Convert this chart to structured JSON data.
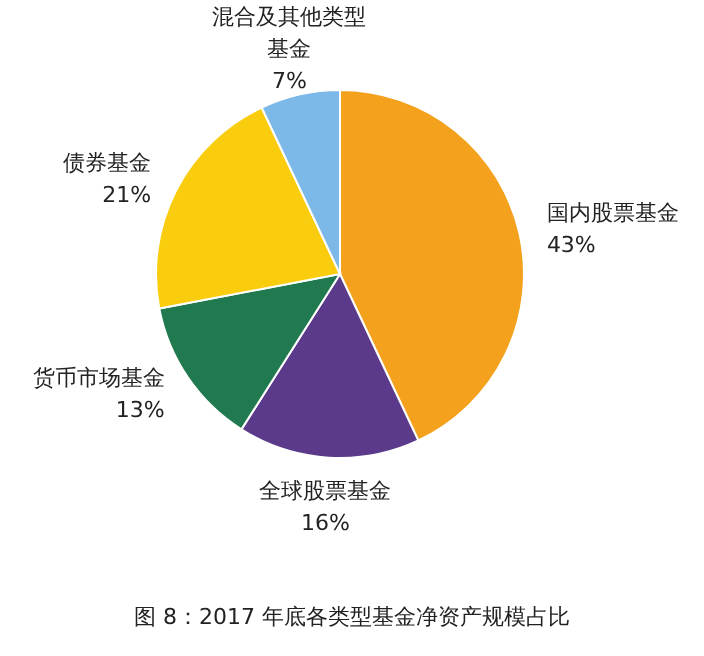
{
  "chart_data": {
    "type": "pie",
    "title": "图 8：2017 年底各类型基金净资产规模占比",
    "categories": [
      "国内股票基金",
      "全球股票基金",
      "货币市场基金",
      "债券基金",
      "混合及其他类型基金"
    ],
    "values": [
      43,
      16,
      13,
      21,
      7
    ],
    "value_labels": [
      "43%",
      "16%",
      "13%",
      "21%",
      "7%"
    ],
    "colors": [
      "#f4a21d",
      "#5b3a8c",
      "#217a4f",
      "#f9cc0e",
      "#7cb8e8"
    ]
  }
}
